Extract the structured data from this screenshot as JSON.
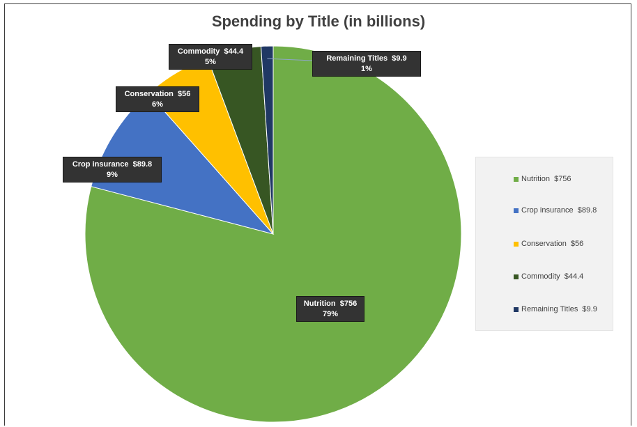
{
  "chart_data": {
    "type": "pie",
    "title": "Spending by Title (in billions)",
    "slices": [
      {
        "name": "Nutrition",
        "value": 756,
        "value_label": "$756",
        "percent_label": "79%",
        "color": "#70ad47"
      },
      {
        "name": "Crop insurance",
        "value": 89.8,
        "value_label": "$89.8",
        "percent_label": "9%",
        "color": "#4472c4"
      },
      {
        "name": "Conservation",
        "value": 56,
        "value_label": "$56",
        "percent_label": "6%",
        "color": "#ffc000"
      },
      {
        "name": "Commodity",
        "value": 44.4,
        "value_label": "$44.4",
        "percent_label": "5%",
        "color": "#375623"
      },
      {
        "name": "Remaining Titles",
        "value": 9.9,
        "value_label": "$9.9",
        "percent_label": "1%",
        "color": "#203864"
      }
    ],
    "legend_position": "right"
  }
}
